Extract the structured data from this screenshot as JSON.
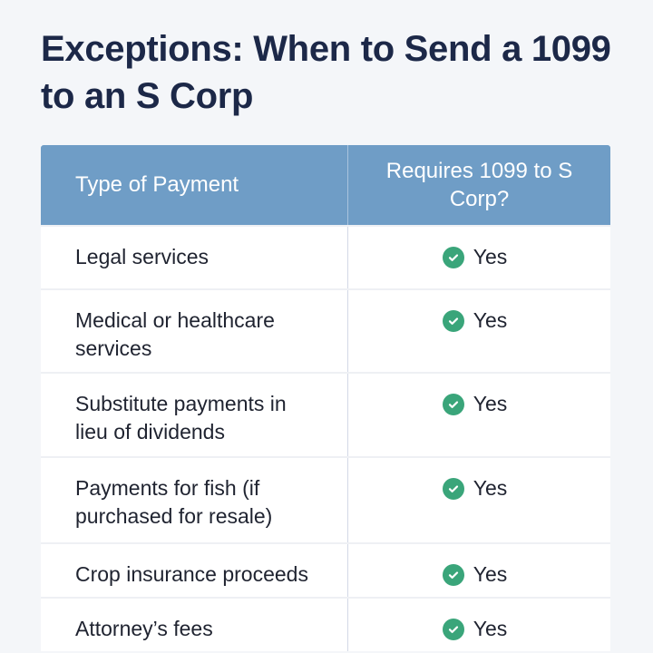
{
  "title": "Exceptions: When to Send a 1099 to an S Corp",
  "table": {
    "headers": [
      "Type of Payment",
      "Requires 1099 to S Corp?"
    ],
    "rows": [
      {
        "type": "Legal services",
        "requires": "Yes",
        "icon": "check-circle-icon"
      },
      {
        "type": "Medical or healthcare services",
        "requires": "Yes",
        "icon": "check-circle-icon"
      },
      {
        "type": "Substitute payments in lieu of dividends",
        "requires": "Yes",
        "icon": "check-circle-icon"
      },
      {
        "type": "Payments for fish (if purchased for resale)",
        "requires": "Yes",
        "icon": "check-circle-icon"
      },
      {
        "type": "Crop insurance proceeds",
        "requires": "Yes",
        "icon": "check-circle-icon"
      },
      {
        "type": "Attorney’s fees",
        "requires": "Yes",
        "icon": "check-circle-icon"
      }
    ]
  },
  "colors": {
    "header": "#6f9dc6",
    "title": "#1c2848",
    "check": "#3aa57a"
  }
}
